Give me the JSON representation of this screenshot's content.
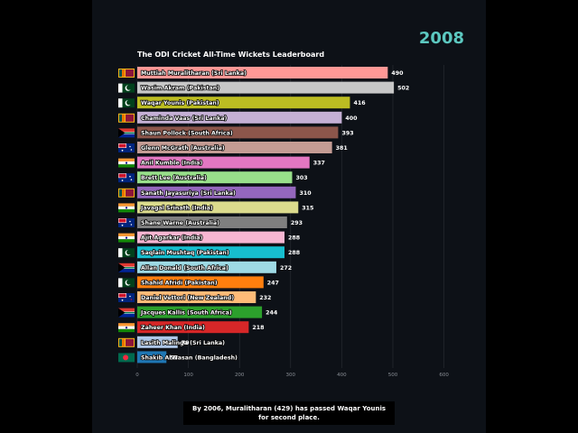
{
  "header": {
    "year": "2008",
    "title": "The ODI Cricket All-Time Wickets Leaderboard"
  },
  "caption": "By 2006, Muralitharan (429) has passed Waqar Younis for second place.",
  "chart_data": {
    "type": "bar",
    "orientation": "horizontal",
    "title": "The ODI Cricket All-Time Wickets Leaderboard",
    "xlim": [
      0,
      600
    ],
    "xticks": [
      0,
      100,
      200,
      300,
      400,
      500,
      600
    ],
    "grid": true,
    "categories": [
      "Muttiah Muralitharan (Sri Lanka)",
      "Wasim Akram (Pakistan)",
      "Waqar Younis (Pakistan)",
      "Chaminda Vaas (Sri Lanka)",
      "Shaun Pollock (South Africa)",
      "Glenn McGrath (Australia)",
      "Anil Kumble (India)",
      "Brett Lee (Australia)",
      "Sanath Jayasuriya (Sri Lanka)",
      "Javagal Srinath (India)",
      "Shane Warne (Australia)",
      "Ajit Agarkar (India)",
      "Saqlain Mushtaq (Pakistan)",
      "Allan Donald (South Africa)",
      "Shahid Afridi (Pakistan)",
      "Daniel Vettori (New Zealand)",
      "Jacques Kallis (South Africa)",
      "Zaheer Khan (India)",
      "Lasith Malinga (Sri Lanka)",
      "Shakib Al Hasan (Bangladesh)"
    ],
    "values": [
      490,
      502,
      416,
      400,
      393,
      381,
      337,
      303,
      310,
      315,
      293,
      288,
      288,
      272,
      247,
      232,
      244,
      218,
      79,
      57
    ],
    "colors": [
      "#ff9896",
      "#c7c7c7",
      "#bcbd22",
      "#c5b0d5",
      "#8c564b",
      "#c49c94",
      "#e377c2",
      "#98df8a",
      "#9467bd",
      "#dbdb8d",
      "#7f7f7f",
      "#f7b6d2",
      "#17becf",
      "#9edae5",
      "#ff7f0e",
      "#ffbb78",
      "#2ca02c",
      "#d62728",
      "#aec7e8",
      "#1f77b4"
    ],
    "flags": [
      "sri-lanka",
      "pakistan",
      "pakistan",
      "sri-lanka",
      "south-africa",
      "australia",
      "india",
      "australia",
      "sri-lanka",
      "india",
      "australia",
      "india",
      "pakistan",
      "south-africa",
      "pakistan",
      "new-zealand",
      "south-africa",
      "india",
      "sri-lanka",
      "bangladesh"
    ]
  }
}
